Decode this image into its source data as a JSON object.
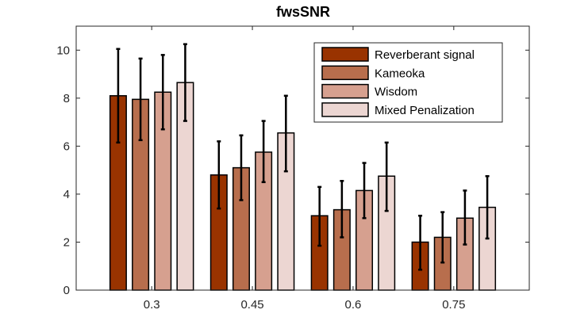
{
  "chart_data": {
    "type": "bar",
    "title": "fwsSNR",
    "xlabel": "",
    "ylabel": "",
    "categories": [
      "0.3",
      "0.45",
      "0.6",
      "0.75"
    ],
    "ylim": [
      0,
      11
    ],
    "yticks": [
      0,
      2,
      4,
      6,
      8,
      10
    ],
    "ytick_labels": [
      "0",
      "2",
      "4",
      "6",
      "8",
      "10"
    ],
    "grid": false,
    "legend_position": "top-right",
    "series": [
      {
        "name": "Reverberant signal",
        "color": "#993300",
        "values": [
          8.1,
          4.8,
          3.1,
          2.0
        ],
        "err_low": [
          6.15,
          3.4,
          1.85,
          0.85
        ],
        "err_high": [
          10.05,
          6.2,
          4.3,
          3.1
        ]
      },
      {
        "name": "Kameoka",
        "color": "#b86e4d",
        "values": [
          7.95,
          5.1,
          3.35,
          2.2
        ],
        "err_low": [
          6.25,
          3.75,
          2.2,
          1.15
        ],
        "err_high": [
          9.65,
          6.45,
          4.55,
          3.25
        ]
      },
      {
        "name": "Wisdom",
        "color": "#d6a08f",
        "values": [
          8.25,
          5.75,
          4.15,
          3.0
        ],
        "err_low": [
          6.7,
          4.5,
          3.0,
          1.9
        ],
        "err_high": [
          9.8,
          7.05,
          5.3,
          4.15
        ]
      },
      {
        "name": "Mixed Penalization",
        "color": "#ecd6d2",
        "values": [
          8.65,
          6.55,
          4.75,
          3.45
        ],
        "err_low": [
          7.05,
          4.95,
          3.3,
          2.15
        ],
        "err_high": [
          10.25,
          8.1,
          6.15,
          4.75
        ]
      }
    ]
  }
}
